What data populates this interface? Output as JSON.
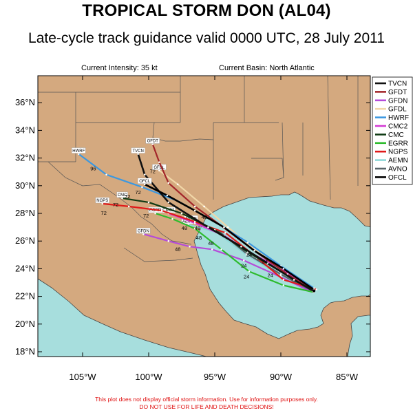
{
  "header": {
    "title": "TROPICAL STORM DON (AL04)",
    "subtitle": "Late-cycle track guidance valid 0000 UTC, 28 July 2011",
    "current_intensity": "Current Intensity: 35 kt",
    "current_basin": "Current Basin: North Atlantic"
  },
  "axes": {
    "lat_labels": [
      "36°N",
      "34°N",
      "32°N",
      "30°N",
      "28°N",
      "26°N",
      "24°N",
      "22°N",
      "20°N",
      "18°N"
    ],
    "lon_labels": [
      "105°W",
      "100°W",
      "95°W",
      "90°W",
      "85°W"
    ]
  },
  "colors": {
    "land": "#d4a97f",
    "water": "#a7dedd",
    "border": "#555555"
  },
  "legend": [
    {
      "name": "TVCN",
      "color": "#111111"
    },
    {
      "name": "GFDT",
      "color": "#a3262a"
    },
    {
      "name": "GFDN",
      "color": "#b54bd9"
    },
    {
      "name": "GFDL",
      "color": "#f1d7a8"
    },
    {
      "name": "HWRF",
      "color": "#3c98e0"
    },
    {
      "name": "CMC2",
      "color": "#d33bd3"
    },
    {
      "name": "CMC",
      "color": "#0f3a14"
    },
    {
      "name": "EGRR",
      "color": "#2dbb2d"
    },
    {
      "name": "NGPS",
      "color": "#e01a1a"
    },
    {
      "name": "AEMN",
      "color": "#8fd8d8"
    },
    {
      "name": "AVNO",
      "color": "#586468"
    },
    {
      "name": "OFCL",
      "color": "#000000"
    }
  ],
  "map_data": {
    "tracks": [
      {
        "name": "TVCN",
        "points": [
          [
            -87.5,
            22.4
          ],
          [
            -89,
            23.2
          ],
          [
            -91,
            24.4
          ],
          [
            -93,
            25.6
          ],
          [
            -95.5,
            27
          ],
          [
            -98.5,
            28.8
          ],
          [
            -100.3,
            30.8
          ],
          [
            -100.8,
            32.3
          ]
        ],
        "tag": "TVCN"
      },
      {
        "name": "GFDT",
        "points": [
          [
            -87.5,
            22.4
          ],
          [
            -89.5,
            23.6
          ],
          [
            -92,
            25.3
          ],
          [
            -94.5,
            27.1
          ],
          [
            -96.5,
            28.5
          ],
          [
            -98.5,
            30.2
          ],
          [
            -99.2,
            31.7
          ],
          [
            -99.7,
            33
          ]
        ],
        "tag": "GFDT"
      },
      {
        "name": "GFDN",
        "points": [
          [
            -87.6,
            22.3
          ],
          [
            -90,
            23.4
          ],
          [
            -92.8,
            24.6
          ],
          [
            -95.2,
            25.4
          ],
          [
            -96.9,
            25.6
          ],
          [
            -98.5,
            26
          ],
          [
            -100.4,
            26.5
          ]
        ],
        "tag": "GFDN"
      },
      {
        "name": "GFDL",
        "points": [
          [
            -87.5,
            22.4
          ],
          [
            -89.5,
            23.7
          ],
          [
            -92,
            25.4
          ],
          [
            -94,
            27
          ],
          [
            -95.8,
            28.5
          ],
          [
            -97.8,
            30.1
          ],
          [
            -99.2,
            31.1
          ]
        ],
        "tag": "GFDL"
      },
      {
        "name": "HWRF",
        "points": [
          [
            -87.5,
            22.6
          ],
          [
            -90,
            24.2
          ],
          [
            -92.5,
            25.9
          ],
          [
            -95,
            27.4
          ],
          [
            -97.8,
            28.9
          ],
          [
            -100.5,
            29.9
          ],
          [
            -103.2,
            30.8
          ],
          [
            -105.3,
            32.3
          ]
        ],
        "tag": "HWRF"
      },
      {
        "name": "CMC2",
        "points": [
          [
            -87.5,
            22.5
          ],
          [
            -90,
            24
          ],
          [
            -92.2,
            25.1
          ],
          [
            -94.3,
            26.4
          ],
          [
            -96.5,
            27.3
          ],
          [
            -98.5,
            28
          ]
        ],
        "tag": "CMC2"
      },
      {
        "name": "CMC",
        "points": [
          [
            -87.6,
            22.4
          ],
          [
            -90,
            23.8
          ],
          [
            -92.5,
            25.2
          ],
          [
            -95,
            26.8
          ],
          [
            -97.5,
            28
          ],
          [
            -100,
            28.8
          ],
          [
            -102,
            29.1
          ]
        ],
        "tag": "CMC"
      },
      {
        "name": "EGRR",
        "points": [
          [
            -87.5,
            22.3
          ],
          [
            -89.8,
            22.8
          ],
          [
            -92.4,
            23.8
          ],
          [
            -94.5,
            25.4
          ],
          [
            -96.5,
            26.9
          ],
          [
            -98.2,
            27.6
          ],
          [
            -99.5,
            28
          ]
        ],
        "tag": "EGRR"
      },
      {
        "name": "NGPS",
        "points": [
          [
            -87.3,
            22.5
          ],
          [
            -89.8,
            23.2
          ],
          [
            -91.8,
            24.8
          ],
          [
            -94.2,
            26.6
          ],
          [
            -96.5,
            27.4
          ],
          [
            -99,
            28.2
          ],
          [
            -101.5,
            28.5
          ],
          [
            -103.5,
            28.7
          ]
        ],
        "tag": "NGPS"
      },
      {
        "name": "AEMN",
        "points": [
          [
            -87.5,
            22.3
          ],
          [
            -90,
            23.5
          ],
          [
            -92.6,
            25
          ],
          [
            -94.8,
            26.6
          ],
          [
            -97,
            27.2
          ]
        ],
        "tag": "AEMN"
      },
      {
        "name": "AVNO",
        "points": [
          [
            -87.5,
            22.3
          ],
          [
            -90,
            23.6
          ],
          [
            -92.6,
            25.1
          ],
          [
            -94.8,
            26.8
          ],
          [
            -96.8,
            27.4
          ]
        ],
        "tag": "AVNO"
      },
      {
        "name": "OFCL",
        "points": [
          [
            -87.5,
            22.5
          ],
          [
            -89.8,
            24
          ],
          [
            -92,
            25.3
          ],
          [
            -94.3,
            27
          ],
          [
            -96.5,
            28.2
          ],
          [
            -98.6,
            29.3
          ],
          [
            -100.3,
            30.1
          ]
        ],
        "tag": "OFCL"
      }
    ],
    "hour_labels": [
      {
        "text": "96",
        "lon": -104.2,
        "lat": 31.1
      },
      {
        "text": "72",
        "lon": -99.7,
        "lat": 30.9
      },
      {
        "text": "72",
        "lon": -101.6,
        "lat": 29.1
      },
      {
        "text": "72",
        "lon": -100.8,
        "lat": 29.4
      },
      {
        "text": "72",
        "lon": -102.5,
        "lat": 28.5
      },
      {
        "text": "72",
        "lon": -103.4,
        "lat": 27.9
      },
      {
        "text": "72",
        "lon": -100.2,
        "lat": 27.7
      },
      {
        "text": "48",
        "lon": -97.8,
        "lat": 25.3
      },
      {
        "text": "48",
        "lon": -95.3,
        "lat": 25.7
      },
      {
        "text": "48",
        "lon": -96.2,
        "lat": 26.1
      },
      {
        "text": "48",
        "lon": -97.3,
        "lat": 26.8
      },
      {
        "text": "48",
        "lon": -96.3,
        "lat": 26.8
      },
      {
        "text": "48",
        "lon": -95.8,
        "lat": 27.6
      },
      {
        "text": "24",
        "lon": -92.6,
        "lat": 23.3
      },
      {
        "text": "24",
        "lon": -92.8,
        "lat": 24.1
      },
      {
        "text": "24",
        "lon": -91.2,
        "lat": 24.4
      },
      {
        "text": "24",
        "lon": -90.8,
        "lat": 23.4
      },
      {
        "text": "24",
        "lon": -92.4,
        "lat": 24.9
      }
    ]
  },
  "footer": {
    "line1": "This plot does not display official storm information. Use for information purposes only.",
    "line2": "DO NOT USE FOR LIFE AND DEATH DECISIONS!"
  }
}
